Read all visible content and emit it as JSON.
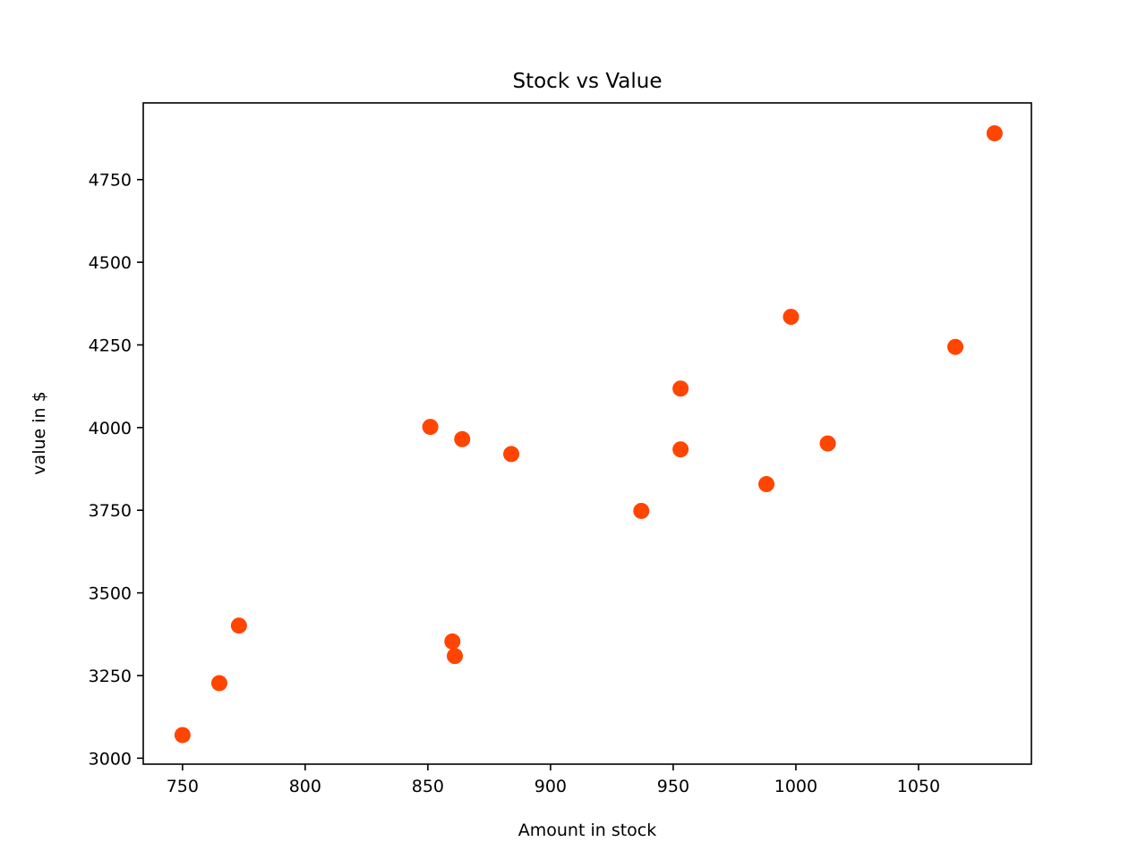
{
  "chart_data": {
    "type": "scatter",
    "title": "Stock vs Value",
    "xlabel": "Amount in stock",
    "ylabel": "value in $",
    "xlim": [
      734,
      1096
    ],
    "ylim": [
      2982,
      4982
    ],
    "xticks": [
      750,
      800,
      850,
      900,
      950,
      1000,
      1050
    ],
    "yticks": [
      3000,
      3250,
      3500,
      3750,
      4000,
      4250,
      4500,
      4750
    ],
    "grid": false,
    "legend": "none",
    "marker_color": "#ff4500",
    "series": [
      {
        "x": [
          750,
          765,
          773,
          851,
          860,
          861,
          864,
          884,
          937,
          953,
          953,
          988,
          998,
          1013,
          1065,
          1081
        ],
        "y": [
          3070,
          3227,
          3401,
          4002,
          3353,
          3309,
          3965,
          3920,
          3748,
          4118,
          3934,
          3829,
          4335,
          3952,
          4244,
          4890
        ]
      }
    ]
  }
}
